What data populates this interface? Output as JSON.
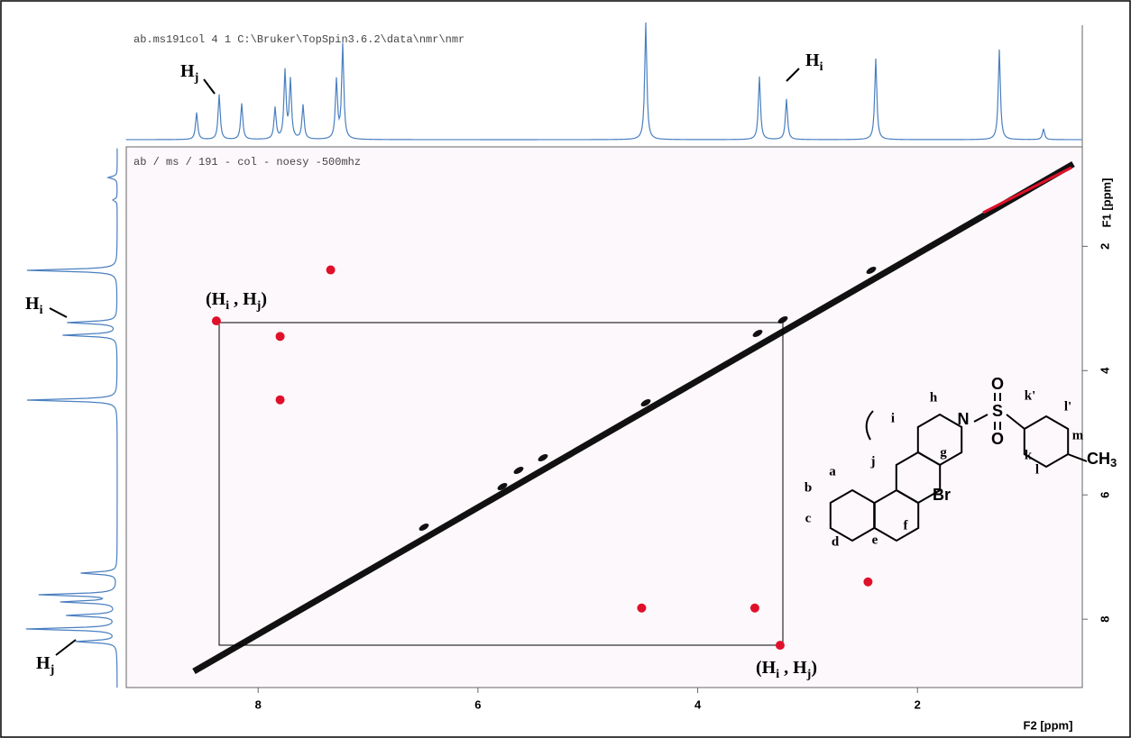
{
  "chart_data": {
    "type": "scatter",
    "title": "ab / ms / 191 - col - noesy -500mhz",
    "header": "ab.ms191col  4  1  C:\\Bruker\\TopSpin3.6.2\\data\\nmr\\nmr",
    "x_label": "F2 [ppm]",
    "y_label": "F1 [ppm]",
    "xlim": [
      9.2,
      0.5
    ],
    "ylim": [
      0.4,
      9.1
    ],
    "xticks": [
      8,
      6,
      4,
      2
    ],
    "yticks": [
      2,
      4,
      6,
      8
    ],
    "color": "#e0102a",
    "x": [
      7.34,
      8.38,
      7.8,
      7.8,
      4.51,
      3.48,
      3.25,
      2.45
    ],
    "values": [
      2.38,
      3.2,
      3.45,
      4.47,
      7.82,
      7.82,
      8.42,
      7.4
    ],
    "annotations": {
      "top_hj": {
        "main": "H",
        "sub": "j"
      },
      "top_hi": {
        "main": "H",
        "sub": "i"
      },
      "left_hi": {
        "main": "H",
        "sub": "i"
      },
      "left_hj": {
        "main": "H",
        "sub": "j"
      },
      "pair_upper": {
        "open": "(H",
        "sub1": "i",
        "mid": " , H",
        "sub2": "j",
        "close": ")"
      },
      "pair_lower": {
        "open": "(H",
        "sub1": "i",
        "mid": " , H",
        "sub2": "j",
        "close": ")"
      }
    },
    "structure": {
      "labels": [
        "a",
        "b",
        "c",
        "d",
        "e",
        "f",
        "g",
        "h",
        "i",
        "j",
        "k",
        "k'",
        "l",
        "l'",
        "m"
      ],
      "atoms": [
        "N",
        "S",
        "O",
        "O",
        "Br",
        "CH",
        "3"
      ]
    }
  }
}
